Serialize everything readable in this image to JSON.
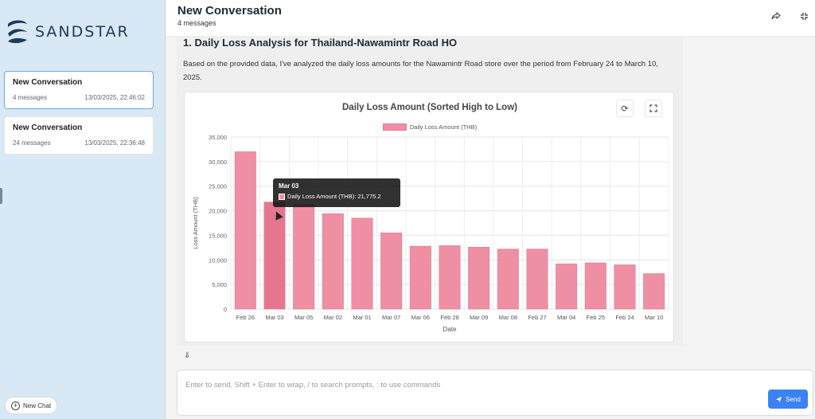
{
  "sidebar": {
    "logo_text": "SANDSTAR",
    "conversations": [
      {
        "title": "New Conversation",
        "count": "4 messages",
        "timestamp": "13/03/2025, 22:46:02"
      },
      {
        "title": "New Conversation",
        "count": "24 messages",
        "timestamp": "13/03/2025, 22:36:48"
      }
    ],
    "new_chat_label": "New Chat"
  },
  "header": {
    "title": "New Conversation",
    "subtitle": "4 messages"
  },
  "message": {
    "heading": "1. Daily Loss Analysis for Thailand-Nawamintr Road HO",
    "paragraph": "Based on the provided data, I've analyzed the daily loss amounts for the Nawamintr Road store over the period from February 24 to March 10, 2025."
  },
  "chart_data": {
    "type": "bar",
    "title": "Daily Loss Amount (Sorted High to Low)",
    "xlabel": "Date",
    "ylabel": "Loss Amount (THB)",
    "ylim": [
      0,
      35000
    ],
    "yticks": [
      "0",
      "5,000",
      "10,000",
      "15,000",
      "20,000",
      "25,000",
      "30,000",
      "35,000"
    ],
    "categories": [
      "Feb 26",
      "Mar 03",
      "Mar 05",
      "Mar 02",
      "Mar 01",
      "Mar 07",
      "Mar 06",
      "Feb 28",
      "Mar 09",
      "Mar 08",
      "Feb 27",
      "Mar 04",
      "Feb 25",
      "Feb 24",
      "Mar 10"
    ],
    "series": [
      {
        "name": "Daily Loss Amount (THB)",
        "values": [
          32000,
          21775.2,
          21300,
          19400,
          18500,
          15500,
          12800,
          12900,
          12600,
          12200,
          12200,
          9200,
          9400,
          9000,
          7200
        ]
      }
    ],
    "grid": true,
    "legend": "top-center",
    "bar_color": "#ef8fa3",
    "highlight_color": "#e4778e"
  },
  "tooltip": {
    "title": "Mar 03",
    "text": "Daily Loss Amount (THB): 21,775.2"
  },
  "input": {
    "placeholder": "Enter to send, Shift + Enter to wrap, / to search prompts, : to use commands"
  },
  "send_label": "Send",
  "icons": {
    "share": "share-icon",
    "fullscreen": "fullscreen-icon",
    "refresh": "refresh-icon",
    "chart_expand": "expand-icon",
    "collapse": "chevron-double-down-icon",
    "send": "paper-plane-icon",
    "new_chat": "plus-circle-icon"
  }
}
